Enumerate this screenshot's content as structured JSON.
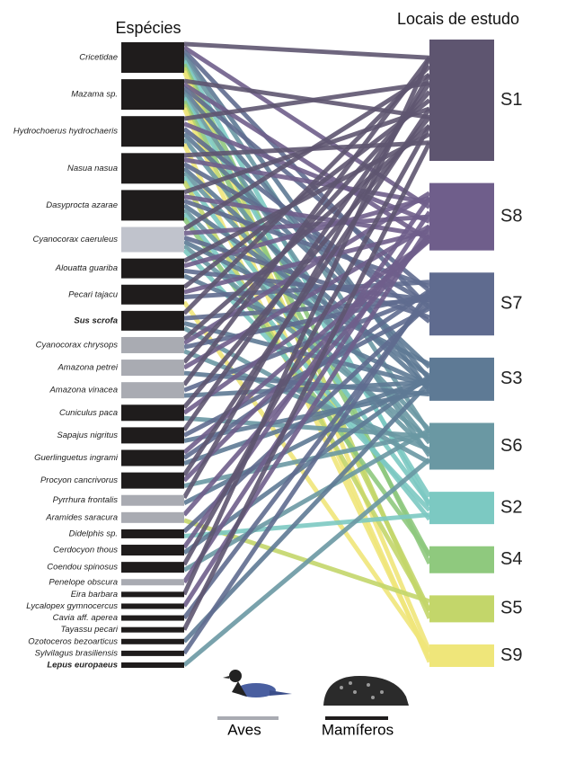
{
  "left_title": "Espécies",
  "right_title": "Locais de estudo",
  "sites": [
    {
      "label": "S1",
      "size": 135,
      "color": "#5e5570"
    },
    {
      "label": "S8",
      "size": 75,
      "color": "#6f5e8b"
    },
    {
      "label": "S7",
      "size": 70,
      "color": "#5f6b8f"
    },
    {
      "label": "S3",
      "size": 48,
      "color": "#5e7a95"
    },
    {
      "label": "S6",
      "size": 52,
      "color": "#6a98a3"
    },
    {
      "label": "S2",
      "size": 36,
      "color": "#7cc9c2"
    },
    {
      "label": "S4",
      "size": 30,
      "color": "#8fc97e"
    },
    {
      "label": "S5",
      "size": 30,
      "color": "#c3d66a"
    },
    {
      "label": "S9",
      "size": 25,
      "color": "#efe67a"
    }
  ],
  "species": [
    {
      "name": "Cricetidae",
      "size": 34,
      "color": "#1f1c1c",
      "sites": [
        "S1",
        "S8",
        "S7",
        "S3",
        "S6",
        "S2",
        "S4",
        "S5",
        "S9"
      ]
    },
    {
      "name": "Mazama sp.",
      "size": 34,
      "color": "#1f1c1c",
      "sites": [
        "S1",
        "S8",
        "S7",
        "S3",
        "S6",
        "S2",
        "S4",
        "S5",
        "S9"
      ]
    },
    {
      "name": "Hydrochoerus hydrochaeris",
      "size": 34,
      "color": "#1f1c1c",
      "sites": [
        "S1",
        "S8",
        "S7",
        "S3",
        "S6",
        "S9"
      ]
    },
    {
      "name": "Nasua nasua",
      "size": 34,
      "color": "#1f1c1c",
      "sites": [
        "S1",
        "S8",
        "S7",
        "S3",
        "S6",
        "S2",
        "S5"
      ]
    },
    {
      "name": "Dasyprocta azarae",
      "size": 34,
      "color": "#1f1c1c",
      "sites": [
        "S1",
        "S8",
        "S7",
        "S3",
        "S6",
        "S2",
        "S4"
      ]
    },
    {
      "name": "Cyanocorax caeruleus",
      "size": 28,
      "color": "#c0c3cc",
      "sites": [
        "S1",
        "S8",
        "S7",
        "S3",
        "S6",
        "S2"
      ]
    },
    {
      "name": "Alouatta guariba",
      "size": 22,
      "color": "#1f1c1c",
      "sites": [
        "S1",
        "S8",
        "S7",
        "S3"
      ]
    },
    {
      "name": "Pecari tajacu",
      "size": 22,
      "color": "#1f1c1c",
      "sites": [
        "S1",
        "S8",
        "S7",
        "S9"
      ]
    },
    {
      "name": "Sus scrofa",
      "size": 22,
      "color": "#1f1c1c",
      "label_color": "#e05a2b",
      "sites": [
        "S1",
        "S7",
        "S3",
        "S6"
      ]
    },
    {
      "name": "Cyanocorax chrysops",
      "size": 18,
      "color": "#a9abb2",
      "sites": [
        "S1",
        "S8",
        "S7",
        "S6"
      ]
    },
    {
      "name": "Amazona petrei",
      "size": 18,
      "color": "#a9abb2",
      "sites": [
        "S1",
        "S8",
        "S3"
      ]
    },
    {
      "name": "Amazona vinacea",
      "size": 18,
      "color": "#a9abb2",
      "sites": [
        "S1",
        "S7",
        "S3"
      ]
    },
    {
      "name": "Cuniculus paca",
      "size": 18,
      "color": "#1f1c1c",
      "sites": [
        "S1",
        "S8",
        "S6"
      ]
    },
    {
      "name": "Sapajus nigritus",
      "size": 18,
      "color": "#1f1c1c",
      "sites": [
        "S1",
        "S7",
        "S3"
      ]
    },
    {
      "name": "Guerlinguetus ingrami",
      "size": 18,
      "color": "#1f1c1c",
      "sites": [
        "S8",
        "S7",
        "S3"
      ]
    },
    {
      "name": "Procyon cancrivorus",
      "size": 18,
      "color": "#1f1c1c",
      "sites": [
        "S1",
        "S8",
        "S6"
      ]
    },
    {
      "name": "Pyrrhura frontalis",
      "size": 12,
      "color": "#a9abb2",
      "sites": [
        "S1",
        "S3"
      ]
    },
    {
      "name": "Aramides saracura",
      "size": 12,
      "color": "#a9abb2",
      "sites": [
        "S8",
        "S5"
      ]
    },
    {
      "name": "Didelphis sp.",
      "size": 10,
      "color": "#1f1c1c",
      "sites": [
        "S7",
        "S2"
      ]
    },
    {
      "name": "Cerdocyon thous",
      "size": 12,
      "color": "#1f1c1c",
      "sites": [
        "S8",
        "S3"
      ]
    },
    {
      "name": "Coendou spinosus",
      "size": 12,
      "color": "#1f1c1c",
      "sites": [
        "S1",
        "S6"
      ]
    },
    {
      "name": "Penelope obscura",
      "size": 7,
      "color": "#a9abb2",
      "sites": [
        "S8"
      ]
    },
    {
      "name": "Eira barbara",
      "size": 6,
      "color": "#1f1c1c",
      "sites": [
        "S1"
      ]
    },
    {
      "name": "Lycalopex gymnocercus",
      "size": 6,
      "color": "#1f1c1c",
      "sites": [
        "S8"
      ]
    },
    {
      "name": "Cavia aff. aperea",
      "size": 6,
      "color": "#1f1c1c",
      "sites": [
        "S7"
      ]
    },
    {
      "name": "Tayassu pecari",
      "size": 6,
      "color": "#1f1c1c",
      "sites": [
        "S1"
      ]
    },
    {
      "name": "Ozotoceros bezoarticus",
      "size": 6,
      "color": "#1f1c1c",
      "sites": [
        "S3"
      ]
    },
    {
      "name": "Sylvilagus brasiliensis",
      "size": 6,
      "color": "#1f1c1c",
      "sites": [
        "S7"
      ]
    },
    {
      "name": "Lepus europaeus",
      "size": 6,
      "color": "#1f1c1c",
      "label_color": "#e05a2b",
      "sites": [
        "S6"
      ]
    }
  ],
  "legend": {
    "birds": "Aves",
    "mammals": "Mamíferos"
  }
}
